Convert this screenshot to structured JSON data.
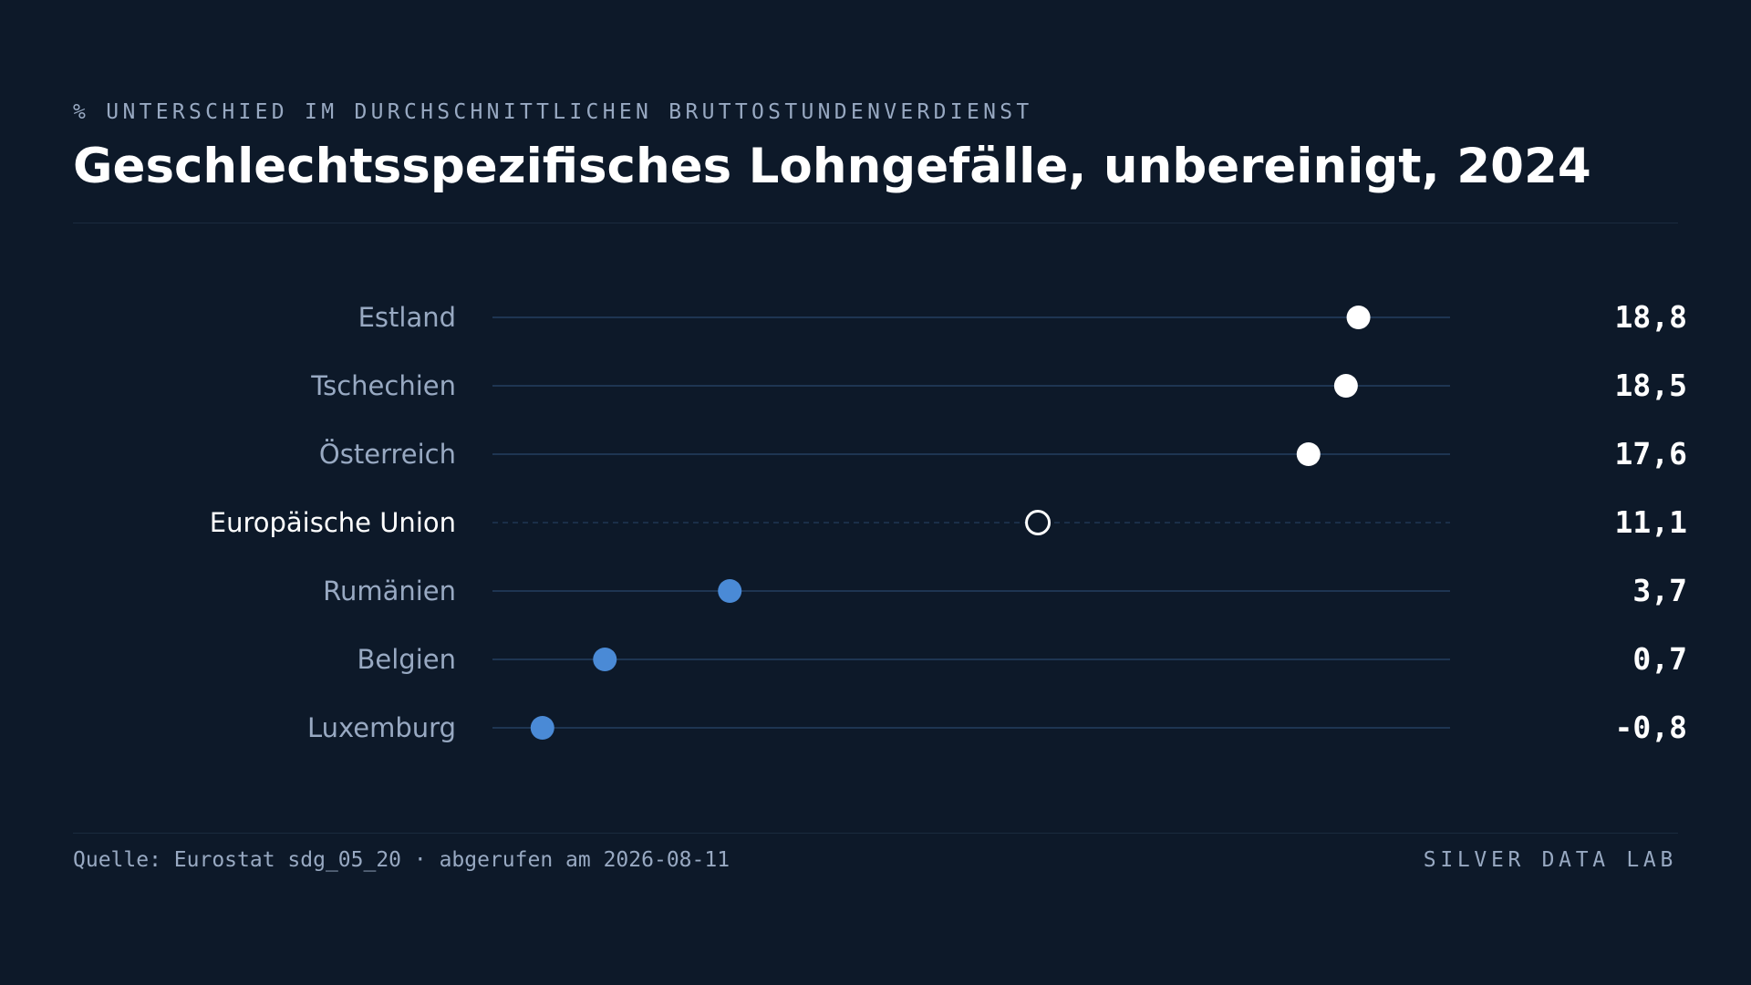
{
  "header": {
    "kicker": "% UNTERSCHIED IM DURCHSCHNITTLICHEN BRUTTOSTUNDENVERDIENST",
    "title": "Geschlechtsspezifisches Lohngefälle, unbereinigt, 2024"
  },
  "footer": {
    "source": "Quelle: Eurostat sdg_05_20 · abgerufen am 2026-08-11",
    "brand": "SILVER DATA LAB"
  },
  "colors": {
    "background": "#0d1929",
    "high_dot": "#ffffff",
    "low_dot": "#4a8ad6",
    "reference_dot_stroke": "#ffffff",
    "track": "#1e3552",
    "label": "#98a9c2",
    "label_highlight": "#ffffff",
    "value": "#ffffff"
  },
  "chart_data": {
    "type": "dot",
    "title": "Geschlechtsspezifisches Lohngefälle, unbereinigt, 2024",
    "subtitle": "% UNTERSCHIED IM DURCHSCHNITTLICHEN BRUTTOSTUNDENVERDIENST",
    "unit": "%",
    "xlim": [
      -2,
      21
    ],
    "grid": false,
    "legend": "none",
    "categories": [
      "Estland",
      "Tschechien",
      "Österreich",
      "Europäische Union",
      "Rumänien",
      "Belgien",
      "Luxemburg"
    ],
    "values": [
      18.8,
      18.5,
      17.6,
      11.1,
      3.7,
      0.7,
      -0.8
    ],
    "value_labels": [
      "18,8",
      "18,5",
      "17,6",
      "11,1",
      "3,7",
      "0,7",
      "-0,8"
    ],
    "groups": [
      "high",
      "high",
      "high",
      "reference",
      "low",
      "low",
      "low"
    ]
  }
}
